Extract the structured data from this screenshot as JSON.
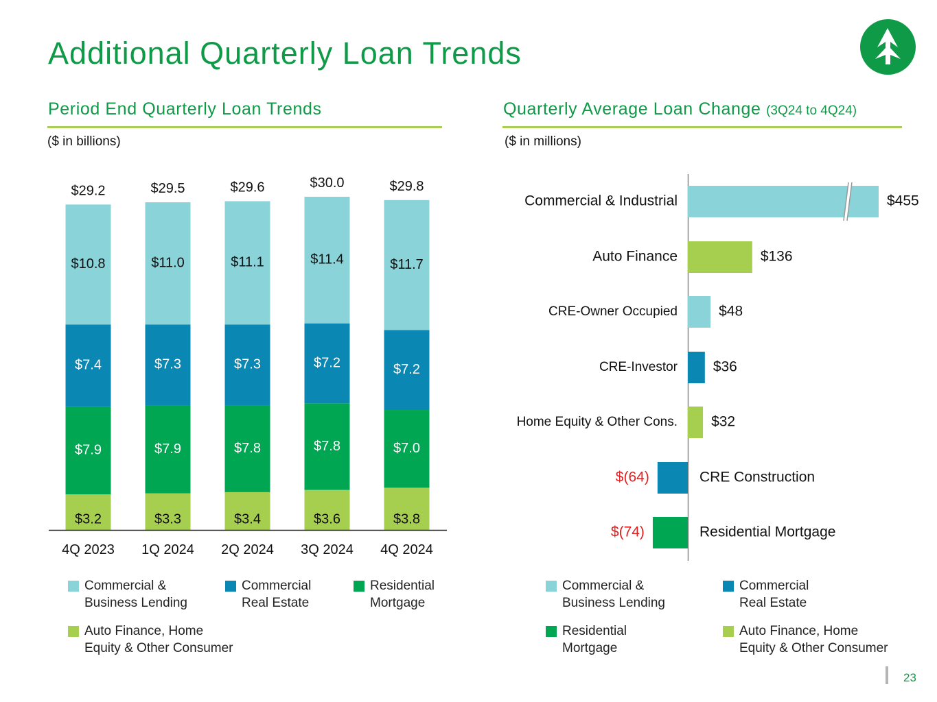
{
  "title": "Additional Quarterly Loan Trends",
  "left_panel": {
    "heading": "Period End Quarterly Loan Trends",
    "unit": "($ in billions)"
  },
  "right_panel": {
    "heading": "Quarterly Average Loan Change",
    "heading_note": "(3Q24 to 4Q24)",
    "unit": "($ in millions)"
  },
  "colors": {
    "commercial_business_lending": "#8ad3d8",
    "commercial_real_estate": "#0a87b3",
    "residential_mortgage": "#00a651",
    "auto_finance_consumer": "#a6cf4f",
    "brand_green": "#0f9a48",
    "negative_red": "#e02020"
  },
  "logo": {
    "icon": "pine-tree-icon"
  },
  "page_number": "23",
  "chart_data": [
    {
      "type": "bar",
      "stacked": true,
      "title": "Period End Quarterly Loan Trends",
      "ylabel": "($ in billions)",
      "categories": [
        "4Q 2023",
        "1Q 2024",
        "2Q 2024",
        "3Q 2024",
        "4Q 2024"
      ],
      "ylim": [
        0,
        30
      ],
      "series": [
        {
          "name": "Auto Finance, Home Equity & Other Consumer",
          "color_key": "auto_finance_consumer",
          "values": [
            3.2,
            3.3,
            3.4,
            3.6,
            3.8
          ],
          "labels": [
            "$3.2",
            "$3.3",
            "$3.4",
            "$3.6",
            "$3.8"
          ]
        },
        {
          "name": "Residential Mortgage",
          "color_key": "residential_mortgage",
          "values": [
            7.9,
            7.9,
            7.8,
            7.8,
            7.0
          ],
          "labels": [
            "$7.9",
            "$7.9",
            "$7.8",
            "$7.8",
            "$7.0"
          ]
        },
        {
          "name": "Commercial Real Estate",
          "color_key": "commercial_real_estate",
          "values": [
            7.4,
            7.3,
            7.3,
            7.2,
            7.2
          ],
          "labels": [
            "$7.4",
            "$7.3",
            "$7.3",
            "$7.2",
            "$7.2"
          ]
        },
        {
          "name": "Commercial & Business Lending",
          "color_key": "commercial_business_lending",
          "values": [
            10.8,
            11.0,
            11.1,
            11.4,
            11.7
          ],
          "labels": [
            "$10.8",
            "$11.0",
            "$11.1",
            "$11.4",
            "$11.7"
          ]
        }
      ],
      "totals": [
        29.2,
        29.5,
        29.6,
        30.0,
        29.8
      ],
      "total_labels": [
        "$29.2",
        "$29.5",
        "$29.6",
        "$30.0",
        "$29.8"
      ],
      "legend": [
        {
          "label": "Commercial &\nBusiness Lending",
          "color_key": "commercial_business_lending"
        },
        {
          "label": "Commercial\nReal Estate",
          "color_key": "commercial_real_estate"
        },
        {
          "label": "Residential\nMortgage",
          "color_key": "residential_mortgage"
        },
        {
          "label": "Auto Finance, Home\nEquity & Other Consumer",
          "color_key": "auto_finance_consumer"
        }
      ]
    },
    {
      "type": "bar",
      "orientation": "horizontal",
      "title": "Quarterly Average Loan Change (3Q24 to 4Q24)",
      "xlabel": "($ in millions)",
      "axis_break": true,
      "broken_bars": [
        "Commercial & Industrial"
      ],
      "categories": [
        "Commercial & Industrial",
        "Auto Finance",
        "CRE-Owner Occupied",
        "CRE-Investor",
        "Home Equity & Other Cons.",
        "CRE Construction",
        "Residential Mortgage"
      ],
      "values": [
        455,
        136,
        48,
        36,
        32,
        -64,
        -74
      ],
      "value_labels": [
        "$455",
        "$136",
        "$48",
        "$36",
        "$32",
        "$(64)",
        "$(74)"
      ],
      "color_keys": [
        "commercial_business_lending",
        "auto_finance_consumer",
        "commercial_business_lending",
        "commercial_real_estate",
        "auto_finance_consumer",
        "commercial_real_estate",
        "residential_mortgage"
      ],
      "legend": [
        {
          "label": "Commercial &\nBusiness Lending",
          "color_key": "commercial_business_lending"
        },
        {
          "label": "Commercial\nReal Estate",
          "color_key": "commercial_real_estate"
        },
        {
          "label": "Residential\nMortgage",
          "color_key": "residential_mortgage"
        },
        {
          "label": "Auto Finance, Home\nEquity & Other Consumer",
          "color_key": "auto_finance_consumer"
        }
      ]
    }
  ]
}
